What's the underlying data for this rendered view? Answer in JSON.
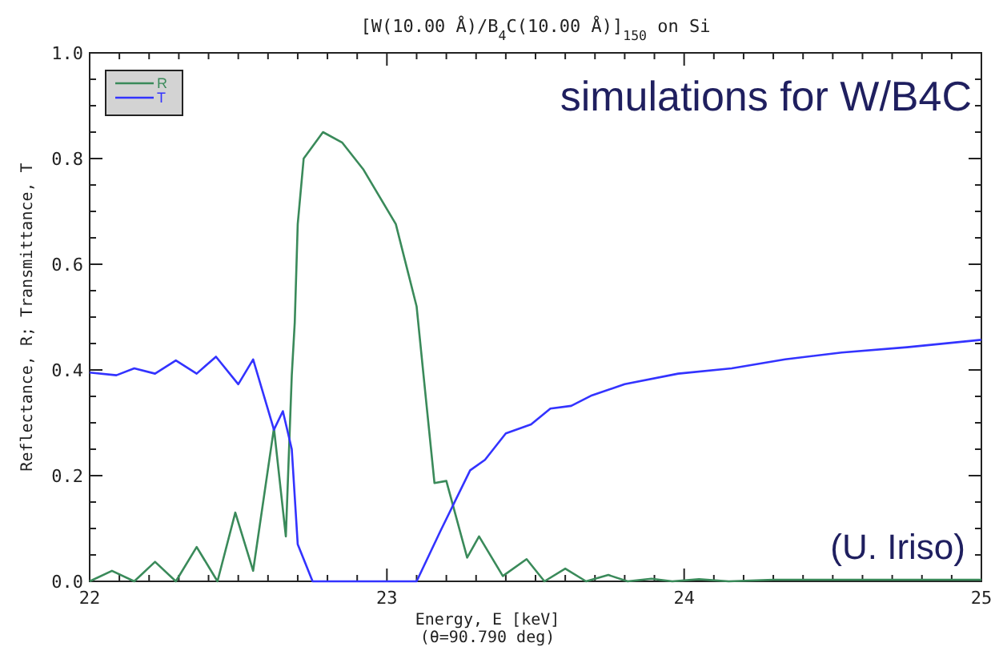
{
  "chart_data": {
    "type": "line",
    "title": "[W(10.00 Å)/B$_{4}$C(10.00 Å)]$_{150}$ on Si",
    "xlabel": "Energy, E [keV]\n(θ=90.790 deg)",
    "ylabel": "Reflectance, R; Transmittance, T",
    "annotations": [
      "simulations for W/B4C",
      "(U. Iriso)"
    ],
    "xlim": [
      22,
      25
    ],
    "ylim": [
      0,
      1
    ],
    "xticks": [
      22,
      {
        "value": 22.1,
        "label": null
      },
      {
        "value": 22.2,
        "label": null
      },
      {
        "value": 22.3,
        "label": null
      },
      {
        "value": 22.4,
        "label": null
      },
      {
        "value": 22.5,
        "label": null
      },
      {
        "value": 22.6,
        "label": null
      },
      {
        "value": 22.7,
        "label": null
      },
      {
        "value": 22.8,
        "label": null
      },
      {
        "value": 22.9,
        "label": null
      },
      23,
      {
        "value": 23.1,
        "label": null
      },
      {
        "value": 23.2,
        "label": null
      },
      {
        "value": 23.3,
        "label": null
      },
      {
        "value": 23.4,
        "label": null
      },
      {
        "value": 23.5,
        "label": null
      },
      {
        "value": 23.6,
        "label": null
      },
      {
        "value": 23.7,
        "label": null
      },
      {
        "value": 23.8,
        "label": null
      },
      {
        "value": 23.9,
        "label": null
      },
      24,
      {
        "value": 24.1,
        "label": null
      },
      {
        "value": 24.2,
        "label": null
      },
      {
        "value": 24.3,
        "label": null
      },
      {
        "value": 24.4,
        "label": null
      },
      {
        "value": 24.5,
        "label": null
      },
      {
        "value": 24.6,
        "label": null
      },
      {
        "value": 24.7,
        "label": null
      },
      {
        "value": 24.8,
        "label": null
      },
      {
        "value": 24.9,
        "label": null
      },
      25
    ],
    "yticks": [
      {
        "value": 0,
        "label": "0.0"
      },
      {
        "value": 0.05,
        "label": null
      },
      {
        "value": 0.1,
        "label": null
      },
      {
        "value": 0.15,
        "label": null
      },
      0.2,
      {
        "value": 0.25,
        "label": null
      },
      {
        "value": 0.3,
        "label": null
      },
      {
        "value": 0.35,
        "label": null
      },
      0.4,
      {
        "value": 0.45,
        "label": null
      },
      {
        "value": 0.5,
        "label": null
      },
      {
        "value": 0.55,
        "label": null
      },
      0.6,
      {
        "value": 0.65,
        "label": null
      },
      {
        "value": 0.7,
        "label": null
      },
      {
        "value": 0.75,
        "label": null
      },
      0.8,
      {
        "value": 0.85,
        "label": null
      },
      {
        "value": 0.9,
        "label": null
      },
      {
        "value": 0.95,
        "label": null
      },
      {
        "value": 1,
        "label": "1.0"
      }
    ],
    "grid": false,
    "legend": "top left",
    "marker": "none",
    "line_style": "solid",
    "series": [
      {
        "name": "R",
        "color": "#3a8a5a",
        "x": [
          22.0,
          22.075,
          22.15,
          22.22,
          22.29,
          22.36,
          22.43,
          22.49,
          22.55,
          22.62,
          22.66,
          22.68,
          22.69,
          22.7,
          22.72,
          22.785,
          22.85,
          22.92,
          23.03,
          23.1,
          23.125,
          23.16,
          23.2,
          23.27,
          23.31,
          23.39,
          23.47,
          23.53,
          23.6,
          23.67,
          23.745,
          23.81,
          23.89,
          23.96,
          24.05,
          24.15,
          24.3,
          24.5,
          24.7,
          24.85,
          25.0
        ],
        "values": [
          0.0,
          0.02,
          0.0,
          0.037,
          0.0,
          0.065,
          0.0,
          0.13,
          0.02,
          0.29,
          0.085,
          0.39,
          0.49,
          0.676,
          0.8,
          0.85,
          0.83,
          0.78,
          0.676,
          0.52,
          0.38,
          0.186,
          0.19,
          0.045,
          0.085,
          0.01,
          0.042,
          0.0,
          0.024,
          0.0,
          0.012,
          0.0,
          0.005,
          0.0,
          0.004,
          0.0,
          0.003,
          0.003,
          0.003,
          0.003,
          0.003
        ]
      },
      {
        "name": "T",
        "color": "#3333ff",
        "x": [
          22.0,
          22.09,
          22.15,
          22.22,
          22.29,
          22.36,
          22.425,
          22.5,
          22.55,
          22.62,
          22.65,
          22.68,
          22.7,
          22.75,
          23.08,
          23.1,
          23.18,
          23.28,
          23.33,
          23.4,
          23.485,
          23.55,
          23.62,
          23.69,
          23.8,
          23.98,
          24.16,
          24.34,
          24.53,
          24.75,
          25.0
        ],
        "values": [
          0.395,
          0.39,
          0.403,
          0.393,
          0.418,
          0.393,
          0.425,
          0.373,
          0.42,
          0.287,
          0.322,
          0.25,
          0.07,
          0.0,
          0.0,
          0.0,
          0.095,
          0.21,
          0.23,
          0.28,
          0.297,
          0.327,
          0.332,
          0.352,
          0.373,
          0.393,
          0.403,
          0.42,
          0.433,
          0.443,
          0.457
        ]
      }
    ]
  }
}
